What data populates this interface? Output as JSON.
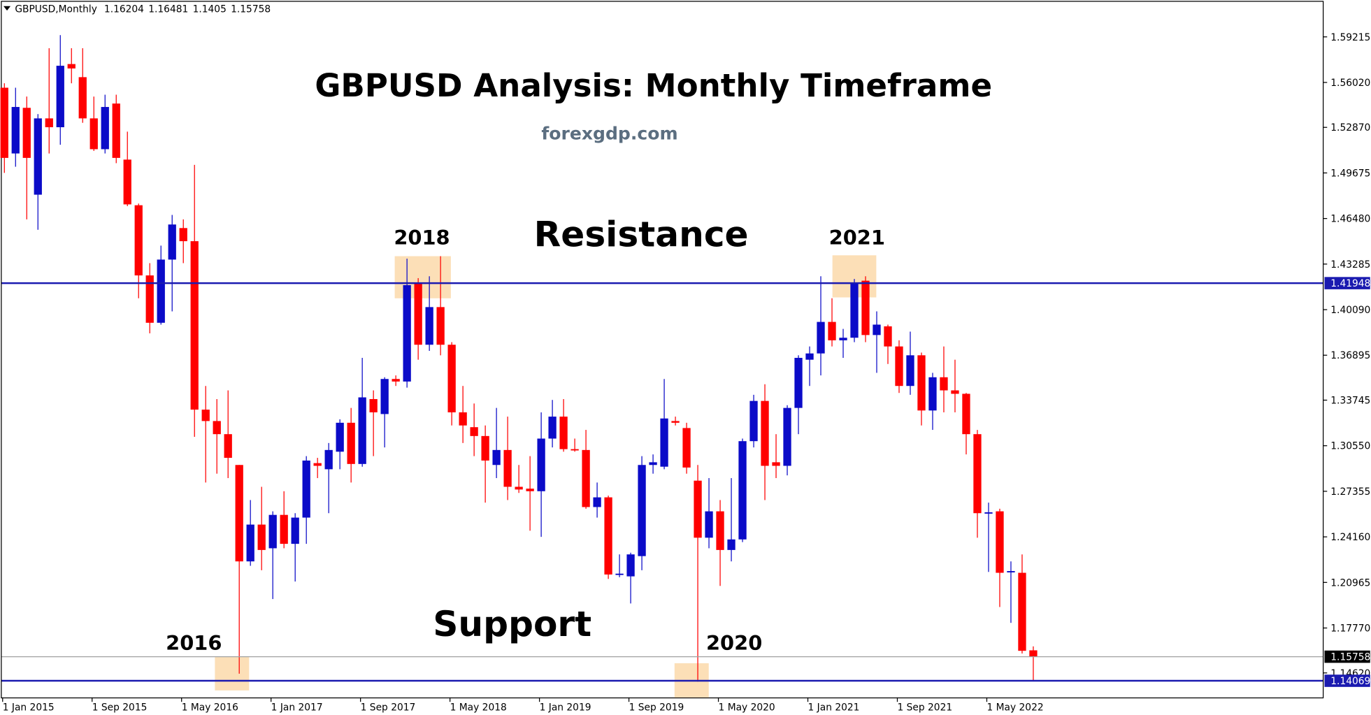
{
  "chart_data": {
    "type": "candlestick",
    "symbol": "GBPUSD,Monthly",
    "title": "GBPUSD Analysis: Monthly Timeframe",
    "subtitle": "forexgdp.com",
    "annotations": [
      "Resistance",
      "Support",
      "2018",
      "2021",
      "2016",
      "2020"
    ],
    "categories": [
      "1 Jan 2015",
      null,
      null,
      null,
      null,
      null,
      null,
      null,
      "1 Sep 2015",
      null,
      null,
      null,
      null,
      null,
      null,
      null,
      "1 May 2016",
      null,
      null,
      null,
      null,
      null,
      null,
      null,
      "1 Jan 2017",
      null,
      null,
      null,
      null,
      null,
      null,
      null,
      "1 Sep 2017",
      null,
      null,
      null,
      null,
      null,
      null,
      null,
      "1 May 2018",
      null,
      null,
      null,
      null,
      null,
      null,
      null,
      "1 Jan 2019",
      null,
      null,
      null,
      null,
      null,
      null,
      null,
      "1 Sep 2019",
      null,
      null,
      null,
      null,
      null,
      null,
      null,
      "1 May 2020",
      null,
      null,
      null,
      null,
      null,
      null,
      null,
      "1 Jan 2021",
      null,
      null,
      null,
      null,
      null,
      null,
      null,
      "1 Sep 2021",
      null,
      null,
      null,
      null,
      null,
      null,
      null,
      "1 May 2022",
      null,
      null,
      null,
      null
    ],
    "open": [
      1.5565,
      1.5104,
      1.5424,
      1.4815,
      1.535,
      1.5288,
      1.5731,
      1.5639,
      1.535,
      1.5134,
      1.5454,
      1.5061,
      1.4741,
      1.4249,
      1.3917,
      1.436,
      1.4581,
      1.4489,
      1.3308,
      1.3228,
      1.3136,
      1.292,
      1.2244,
      1.2502,
      1.2336,
      1.257,
      1.2367,
      1.2551,
      1.2933,
      1.289,
      1.3013,
      1.3216,
      1.2927,
      1.3382,
      1.3277,
      1.3523,
      1.3505,
      1.4194,
      1.3763,
      1.4027,
      1.3763,
      1.3289,
      1.3185,
      1.3123,
      1.292,
      1.3025,
      1.2767,
      1.2754,
      1.2736,
      1.3105,
      1.3259,
      1.3031,
      1.3025,
      1.2625,
      1.2693,
      1.2152,
      1.2139,
      1.2281,
      1.292,
      1.2908,
      1.3228,
      1.3179,
      1.281,
      1.241,
      1.2595,
      1.2324,
      1.2398,
      1.3087,
      1.3369,
      1.2939,
      1.2914,
      1.332,
      1.3658,
      1.3702,
      1.3923,
      1.3794,
      1.3812,
      1.4212,
      1.3831,
      1.3892,
      1.3751,
      1.3474,
      1.3689,
      1.3302,
      1.3535,
      1.3443,
      1.3419,
      1.3136,
      1.2582,
      1.2595,
      1.217,
      1.2164,
      1.16204
    ],
    "high": [
      1.5596,
      1.5565,
      1.5503,
      1.538,
      1.5842,
      1.5934,
      1.5842,
      1.5842,
      1.5503,
      1.5516,
      1.5516,
      1.5257,
      1.4753,
      1.4335,
      1.4458,
      1.4673,
      1.4642,
      1.5024,
      1.3474,
      1.3382,
      1.3443,
      1.292,
      1.2674,
      1.2767,
      1.2595,
      1.2736,
      1.2582,
      1.2982,
      1.297,
      1.3074,
      1.324,
      1.332,
      1.3671,
      1.3443,
      1.3535,
      1.3548,
      1.4366,
      1.423,
      1.4243,
      1.4384,
      1.3781,
      1.3474,
      1.3351,
      1.3197,
      1.332,
      1.3259,
      1.292,
      1.2982,
      1.3289,
      1.3376,
      1.3382,
      1.3105,
      1.3166,
      1.2797,
      1.2705,
      1.2293,
      1.2305,
      1.2982,
      1.2994,
      1.3523,
      1.3259,
      1.3216,
      1.292,
      1.2828,
      1.2674,
      1.2828,
      1.3105,
      1.3412,
      1.3486,
      1.3136,
      1.3339,
      1.3689,
      1.3751,
      1.4243,
      1.4089,
      1.3874,
      1.4224,
      1.4243,
      1.3997,
      1.3904,
      1.3794,
      1.3855,
      1.3708,
      1.3566,
      1.3751,
      1.3658,
      1.3425,
      1.3166,
      1.2656,
      1.2613,
      1.2244,
      1.2293,
      1.16481
    ],
    "low": [
      1.4968,
      1.5011,
      1.4642,
      1.4569,
      1.5104,
      1.5165,
      1.5596,
      1.5319,
      1.5122,
      1.5104,
      1.5036,
      1.4735,
      1.4089,
      1.3843,
      1.3904,
      1.3997,
      1.4335,
      1.3117,
      1.2797,
      1.2859,
      1.2828,
      1.1457,
      1.2213,
      1.2182,
      1.198,
      1.2336,
      1.2103,
      1.2367,
      1.2828,
      1.2582,
      1.289,
      1.2797,
      1.2908,
      1.2982,
      1.3043,
      1.3474,
      1.3462,
      1.3658,
      1.372,
      1.3689,
      1.3197,
      1.3074,
      1.2982,
      1.2656,
      1.2828,
      1.2674,
      1.2724,
      1.2459,
      1.2416,
      1.3043,
      1.3013,
      1.3013,
      1.2613,
      1.2551,
      1.2121,
      1.2133,
      1.1949,
      1.2182,
      1.2859,
      1.289,
      1.3197,
      1.2859,
      1.1401,
      1.2336,
      1.2072,
      1.2244,
      1.2379,
      1.3043,
      1.2674,
      1.2828,
      1.2847,
      1.3136,
      1.3474,
      1.3548,
      1.3751,
      1.3671,
      1.3781,
      1.3781,
      1.3566,
      1.3628,
      1.3425,
      1.3412,
      1.3197,
      1.3166,
      1.3289,
      1.3289,
      1.2994,
      1.241,
      1.217,
      1.1924,
      1.1813,
      1.1598,
      1.1405
    ],
    "close": [
      1.5073,
      1.543,
      1.5073,
      1.535,
      1.5288,
      1.5719,
      1.57,
      1.535,
      1.5134,
      1.543,
      1.5073,
      1.4747,
      1.4249,
      1.3917,
      1.436,
      1.4606,
      1.4489,
      1.3308,
      1.3228,
      1.3136,
      1.297,
      1.2244,
      1.2502,
      1.2324,
      1.257,
      1.2367,
      1.2551,
      1.2951,
      1.2914,
      1.3025,
      1.3216,
      1.2927,
      1.3394,
      1.3289,
      1.3523,
      1.3505,
      1.4181,
      1.3763,
      1.4027,
      1.3763,
      1.3289,
      1.3197,
      1.3123,
      1.2951,
      1.3025,
      1.2767,
      1.2748,
      1.2736,
      1.3105,
      1.3259,
      1.3031,
      1.3025,
      1.2625,
      1.2693,
      1.2152,
      1.2158,
      1.2293,
      1.292,
      1.2939,
      1.3246,
      1.3216,
      1.2902,
      1.241,
      1.2595,
      1.2324,
      1.2398,
      1.3087,
      1.3369,
      1.2914,
      1.2914,
      1.332,
      1.3671,
      1.3702,
      1.3923,
      1.3794,
      1.3812,
      1.42,
      1.3831,
      1.3904,
      1.3751,
      1.3474,
      1.3689,
      1.3302,
      1.3535,
      1.3443,
      1.3419,
      1.3136,
      1.2582,
      1.2588,
      1.2164,
      1.2176,
      1.1617,
      1.15758
    ],
    "up_color": "#0b0bc8",
    "down_color": "#ff0000",
    "levels": [
      {
        "value": 1.41948,
        "color": "#1a1ab0"
      },
      {
        "value": 1.14069,
        "color": "#1a1ab0"
      },
      {
        "value": 1.15758,
        "color": "#a0a0a0"
      }
    ],
    "ylim": [
      1.129,
      1.618
    ],
    "yticks": [
      1.59215,
      {
        "value": 1.5602,
        "label": "1.56020"
      },
      {
        "value": 1.5287,
        "label": "1.52870"
      },
      1.49675,
      {
        "value": 1.4648,
        "label": "1.46480"
      },
      1.43285,
      {
        "value": 1.4009,
        "label": "1.40090"
      },
      1.36895,
      1.33745,
      {
        "value": 1.3055,
        "label": "1.30550"
      },
      1.27355,
      {
        "value": 1.2416,
        "label": "1.24160"
      },
      1.20965,
      {
        "value": 1.1777,
        "label": "1.17770"
      },
      {
        "value": 1.1462,
        "label": "1.14620"
      }
    ]
  }
}
